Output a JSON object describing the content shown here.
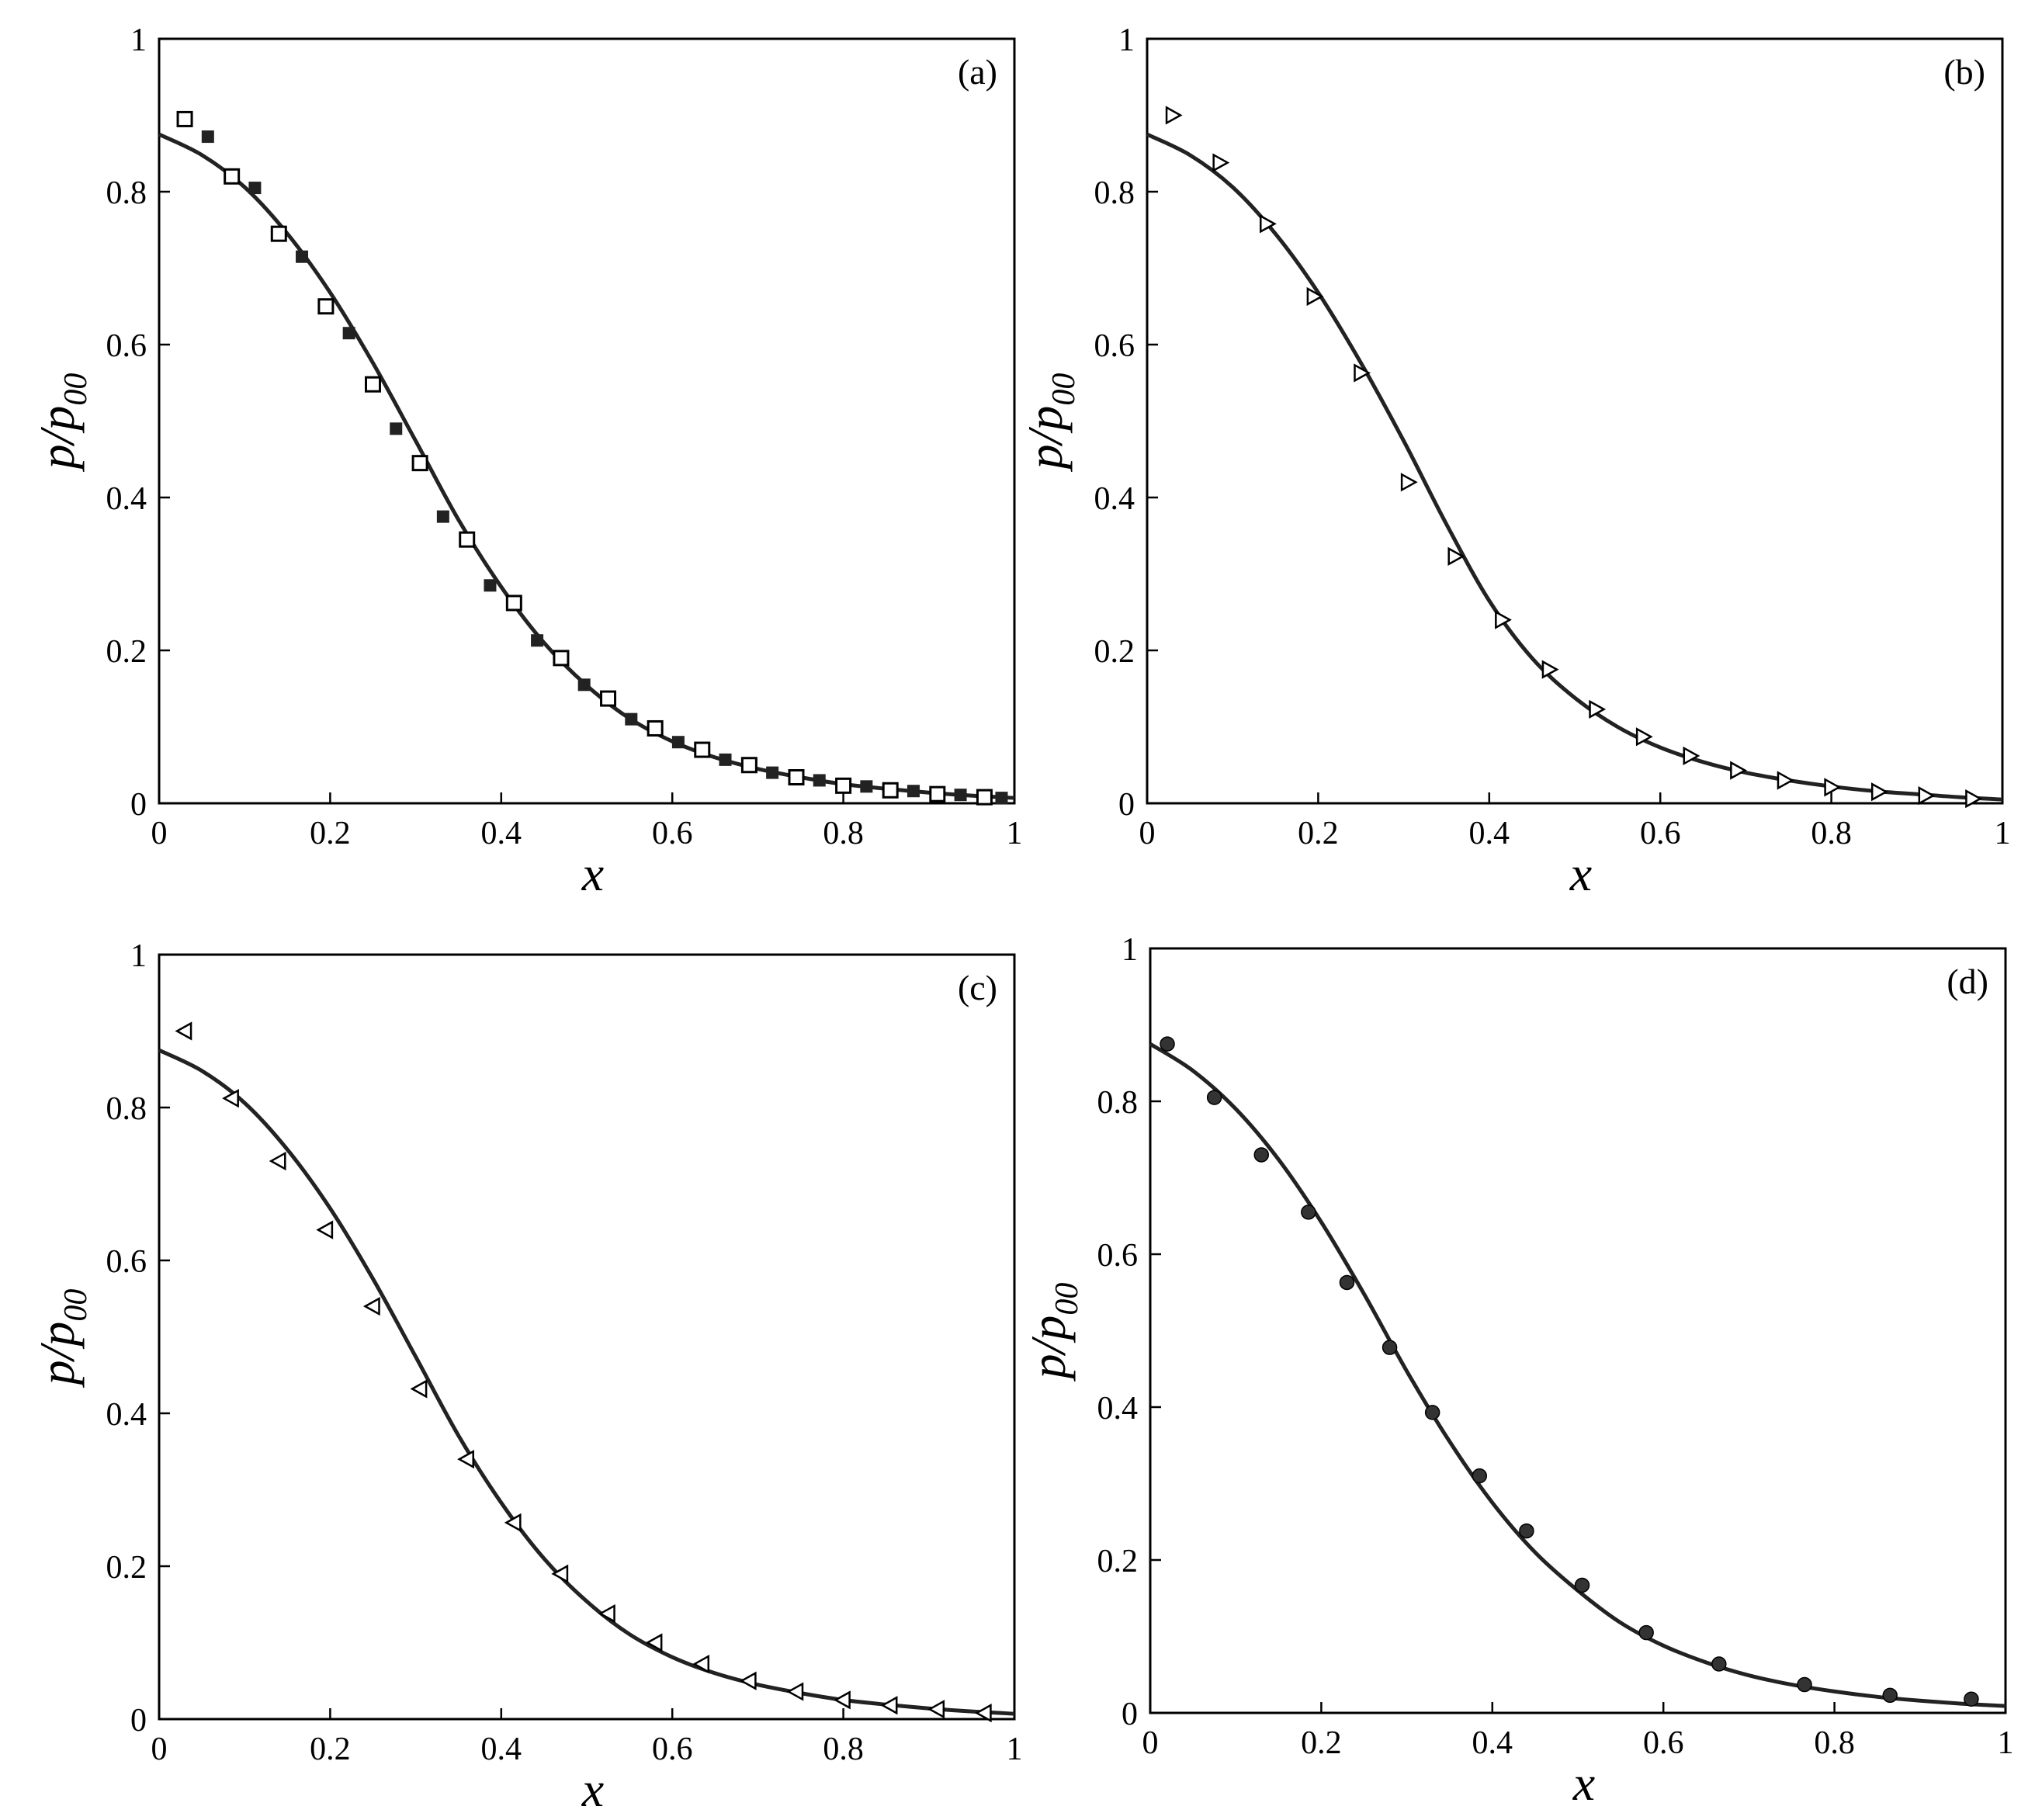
{
  "chart_data": [
    {
      "type": "scatter",
      "panel_label": "(a)",
      "xlabel": "x",
      "ylabel": "p/p00",
      "ylabel_main": "p/p",
      "ylabel_sub": "00",
      "xlim": [
        0,
        1
      ],
      "ylim": [
        0,
        1
      ],
      "x_ticks": [
        "0",
        "0.2",
        "0.4",
        "0.6",
        "0.8",
        "1"
      ],
      "y_ticks": [
        "0",
        "0.2",
        "0.4",
        "0.6",
        "0.8",
        "1"
      ],
      "grid": false,
      "series": [
        {
          "marker": "open-square",
          "points": [
            [
              0.03,
              0.895
            ],
            [
              0.085,
              0.82
            ],
            [
              0.14,
              0.745
            ],
            [
              0.195,
              0.65
            ],
            [
              0.25,
              0.548
            ],
            [
              0.305,
              0.445
            ],
            [
              0.36,
              0.345
            ],
            [
              0.415,
              0.262
            ],
            [
              0.47,
              0.19
            ],
            [
              0.525,
              0.137
            ],
            [
              0.58,
              0.098
            ],
            [
              0.635,
              0.07
            ],
            [
              0.69,
              0.05
            ],
            [
              0.745,
              0.034
            ],
            [
              0.8,
              0.023
            ],
            [
              0.855,
              0.017
            ],
            [
              0.91,
              0.012
            ],
            [
              0.965,
              0.008
            ]
          ]
        },
        {
          "marker": "filled-square",
          "points": [
            [
              0.057,
              0.872
            ],
            [
              0.112,
              0.805
            ],
            [
              0.167,
              0.715
            ],
            [
              0.222,
              0.615
            ],
            [
              0.277,
              0.49
            ],
            [
              0.332,
              0.375
            ],
            [
              0.387,
              0.285
            ],
            [
              0.442,
              0.213
            ],
            [
              0.497,
              0.155
            ],
            [
              0.552,
              0.11
            ],
            [
              0.607,
              0.08
            ],
            [
              0.662,
              0.057
            ],
            [
              0.717,
              0.04
            ],
            [
              0.772,
              0.03
            ],
            [
              0.827,
              0.022
            ],
            [
              0.882,
              0.016
            ],
            [
              0.937,
              0.011
            ],
            [
              0.985,
              0.007
            ]
          ]
        }
      ],
      "curve": {
        "points": [
          [
            0,
            0.875
          ],
          [
            0.05,
            0.848
          ],
          [
            0.1,
            0.806
          ],
          [
            0.15,
            0.745
          ],
          [
            0.2,
            0.668
          ],
          [
            0.25,
            0.576
          ],
          [
            0.3,
            0.474
          ],
          [
            0.35,
            0.371
          ],
          [
            0.4,
            0.283
          ],
          [
            0.45,
            0.21
          ],
          [
            0.5,
            0.154
          ],
          [
            0.55,
            0.111
          ],
          [
            0.6,
            0.081
          ],
          [
            0.65,
            0.06
          ],
          [
            0.7,
            0.045
          ],
          [
            0.75,
            0.034
          ],
          [
            0.8,
            0.025
          ],
          [
            0.85,
            0.019
          ],
          [
            0.9,
            0.014
          ],
          [
            0.95,
            0.01
          ],
          [
            1,
            0.007
          ]
        ]
      }
    },
    {
      "type": "scatter",
      "panel_label": "(b)",
      "xlabel": "x",
      "ylabel": "p/p00",
      "ylabel_main": "p/p",
      "ylabel_sub": "00",
      "xlim": [
        0,
        1
      ],
      "ylim": [
        0,
        1
      ],
      "x_ticks": [
        "0",
        "0.2",
        "0.4",
        "0.6",
        "0.8",
        "1"
      ],
      "y_ticks": [
        "0",
        "0.2",
        "0.4",
        "0.6",
        "0.8",
        "1"
      ],
      "grid": false,
      "series": [
        {
          "marker": "open-triangle-right",
          "points": [
            [
              0.03,
              0.9
            ],
            [
              0.085,
              0.838
            ],
            [
              0.14,
              0.758
            ],
            [
              0.195,
              0.663
            ],
            [
              0.25,
              0.563
            ],
            [
              0.305,
              0.42
            ],
            [
              0.36,
              0.323
            ],
            [
              0.415,
              0.24
            ],
            [
              0.47,
              0.175
            ],
            [
              0.525,
              0.123
            ],
            [
              0.58,
              0.087
            ],
            [
              0.635,
              0.062
            ],
            [
              0.69,
              0.043
            ],
            [
              0.745,
              0.03
            ],
            [
              0.8,
              0.021
            ],
            [
              0.855,
              0.015
            ],
            [
              0.91,
              0.01
            ],
            [
              0.965,
              0.006
            ]
          ]
        }
      ],
      "curve": {
        "points": [
          [
            0,
            0.875
          ],
          [
            0.05,
            0.848
          ],
          [
            0.1,
            0.806
          ],
          [
            0.15,
            0.745
          ],
          [
            0.2,
            0.668
          ],
          [
            0.25,
            0.576
          ],
          [
            0.3,
            0.474
          ],
          [
            0.35,
            0.365
          ],
          [
            0.4,
            0.265
          ],
          [
            0.45,
            0.19
          ],
          [
            0.5,
            0.138
          ],
          [
            0.55,
            0.1
          ],
          [
            0.6,
            0.073
          ],
          [
            0.65,
            0.054
          ],
          [
            0.7,
            0.04
          ],
          [
            0.75,
            0.03
          ],
          [
            0.8,
            0.022
          ],
          [
            0.85,
            0.016
          ],
          [
            0.9,
            0.012
          ],
          [
            0.95,
            0.008
          ],
          [
            1,
            0.005
          ]
        ]
      }
    },
    {
      "type": "scatter",
      "panel_label": "(c)",
      "xlabel": "x",
      "ylabel": "p/p00",
      "ylabel_main": "p/p",
      "ylabel_sub": "00",
      "xlim": [
        0,
        1
      ],
      "ylim": [
        0,
        1
      ],
      "x_ticks": [
        "0",
        "0.2",
        "0.4",
        "0.6",
        "0.8",
        "1"
      ],
      "y_ticks": [
        "0",
        "0.2",
        "0.4",
        "0.6",
        "0.8",
        "1"
      ],
      "grid": false,
      "series": [
        {
          "marker": "open-triangle-left",
          "points": [
            [
              0.03,
              0.9
            ],
            [
              0.085,
              0.812
            ],
            [
              0.14,
              0.73
            ],
            [
              0.195,
              0.64
            ],
            [
              0.25,
              0.54
            ],
            [
              0.305,
              0.432
            ],
            [
              0.36,
              0.34
            ],
            [
              0.415,
              0.257
            ],
            [
              0.47,
              0.19
            ],
            [
              0.525,
              0.138
            ],
            [
              0.58,
              0.1
            ],
            [
              0.635,
              0.072
            ],
            [
              0.69,
              0.05
            ],
            [
              0.745,
              0.036
            ],
            [
              0.8,
              0.025
            ],
            [
              0.855,
              0.018
            ],
            [
              0.91,
              0.013
            ],
            [
              0.965,
              0.008
            ]
          ]
        }
      ],
      "curve": {
        "points": [
          [
            0,
            0.875
          ],
          [
            0.05,
            0.848
          ],
          [
            0.1,
            0.806
          ],
          [
            0.15,
            0.745
          ],
          [
            0.2,
            0.668
          ],
          [
            0.25,
            0.576
          ],
          [
            0.3,
            0.474
          ],
          [
            0.35,
            0.371
          ],
          [
            0.4,
            0.283
          ],
          [
            0.45,
            0.21
          ],
          [
            0.5,
            0.154
          ],
          [
            0.55,
            0.111
          ],
          [
            0.6,
            0.081
          ],
          [
            0.65,
            0.06
          ],
          [
            0.7,
            0.045
          ],
          [
            0.75,
            0.034
          ],
          [
            0.8,
            0.025
          ],
          [
            0.85,
            0.019
          ],
          [
            0.9,
            0.014
          ],
          [
            0.95,
            0.01
          ],
          [
            1,
            0.007
          ]
        ]
      }
    },
    {
      "type": "scatter",
      "panel_label": "(d)",
      "xlabel": "x",
      "ylabel": "p/p00",
      "ylabel_main": "p/p",
      "ylabel_sub": "00",
      "xlim": [
        0,
        1
      ],
      "ylim": [
        0,
        1
      ],
      "x_ticks": [
        "0",
        "0.2",
        "0.4",
        "0.6",
        "0.8",
        "1"
      ],
      "y_ticks": [
        "0",
        "0.2",
        "0.4",
        "0.6",
        "0.8",
        "1"
      ],
      "grid": false,
      "series": [
        {
          "marker": "filled-circle",
          "points": [
            [
              0.02,
              0.875
            ],
            [
              0.075,
              0.805
            ],
            [
              0.13,
              0.73
            ],
            [
              0.185,
              0.655
            ],
            [
              0.23,
              0.563
            ],
            [
              0.28,
              0.478
            ],
            [
              0.33,
              0.393
            ],
            [
              0.385,
              0.31
            ],
            [
              0.44,
              0.238
            ],
            [
              0.505,
              0.167
            ],
            [
              0.58,
              0.105
            ],
            [
              0.665,
              0.064
            ],
            [
              0.765,
              0.037
            ],
            [
              0.865,
              0.023
            ],
            [
              0.96,
              0.018
            ]
          ]
        }
      ],
      "curve": {
        "points": [
          [
            0,
            0.875
          ],
          [
            0.05,
            0.84
          ],
          [
            0.1,
            0.79
          ],
          [
            0.15,
            0.724
          ],
          [
            0.2,
            0.642
          ],
          [
            0.25,
            0.548
          ],
          [
            0.3,
            0.447
          ],
          [
            0.35,
            0.355
          ],
          [
            0.4,
            0.275
          ],
          [
            0.45,
            0.21
          ],
          [
            0.5,
            0.16
          ],
          [
            0.55,
            0.118
          ],
          [
            0.6,
            0.088
          ],
          [
            0.65,
            0.066
          ],
          [
            0.7,
            0.049
          ],
          [
            0.75,
            0.037
          ],
          [
            0.8,
            0.028
          ],
          [
            0.85,
            0.021
          ],
          [
            0.9,
            0.016
          ],
          [
            0.95,
            0.012
          ],
          [
            1,
            0.009
          ]
        ]
      }
    }
  ],
  "colors": {
    "ink": "#000000",
    "curve": "#222222",
    "marker_fill_dark": "#222222",
    "marker_fill_circle": "#333333",
    "background": "#ffffff"
  }
}
